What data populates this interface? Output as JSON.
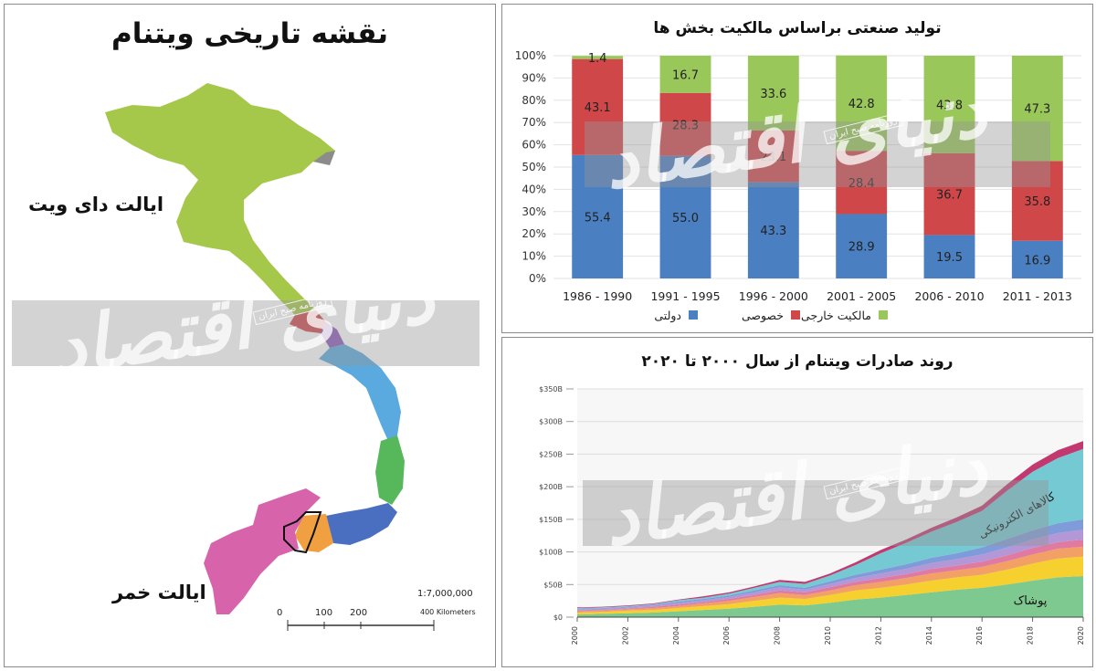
{
  "map_panel": {
    "title": "نقشه تاریخی ویتنام",
    "label_north": "ایالت دای ویت",
    "label_south": "ایالت خمر",
    "scale_ratio": "1:7,000,000",
    "scale_ticks": [
      "0",
      "100",
      "200",
      "400 Kilometers"
    ],
    "region_colors": {
      "north": "#a6c84a",
      "central": "#5aa9df",
      "south": "#d764ab"
    }
  },
  "watermark": {
    "main": "دنیای اقتصاد",
    "sub": "روزنامه صبح ایران"
  },
  "chart_data": [
    {
      "type": "bar",
      "stacked": true,
      "title": "تولید صنعتی براساس مالکیت بخش ها",
      "categories": [
        "1986 - 1990",
        "1991 - 1995",
        "1996 - 2000",
        "2001 - 2005",
        "2006 - 2010",
        "2011 - 2013"
      ],
      "series": [
        {
          "name": "دولتی",
          "color": "#4a7fc1",
          "values": [
            55.4,
            55.0,
            43.3,
            28.9,
            19.5,
            16.9
          ]
        },
        {
          "name": "خصوصی",
          "color": "#d0474a",
          "values": [
            43.1,
            28.3,
            23.1,
            28.4,
            36.7,
            35.8
          ]
        },
        {
          "name": "مالکیت خارجی",
          "color": "#9ac75a",
          "values": [
            1.4,
            16.7,
            33.6,
            42.8,
            43.8,
            47.3
          ]
        }
      ],
      "yticks": [
        "0%",
        "10%",
        "20%",
        "30%",
        "40%",
        "50%",
        "60%",
        "70%",
        "80%",
        "90%",
        "100%"
      ],
      "ylim": [
        0,
        100
      ],
      "legend": "bottom"
    },
    {
      "type": "area",
      "stacked": true,
      "title": "روند صادرات ویتنام از سال ۲۰۰۰ تا ۲۰۲۰",
      "x": [
        2000,
        2001,
        2002,
        2003,
        2004,
        2005,
        2006,
        2007,
        2008,
        2009,
        2010,
        2011,
        2012,
        2013,
        2014,
        2015,
        2016,
        2017,
        2018,
        2019,
        2020
      ],
      "xticks": [
        "2000",
        "2002",
        "2004",
        "2006",
        "2008",
        "2010",
        "2012",
        "2014",
        "2016",
        "2018",
        "2020"
      ],
      "yticks": [
        "$0",
        "$50B",
        "$100B",
        "$150B",
        "$200B",
        "$250B",
        "$300B",
        "$350B"
      ],
      "ylim": [
        0,
        350
      ],
      "series": [
        {
          "name": "پوشاک",
          "color": "#7ec98f",
          "values": [
            4,
            5,
            6,
            7,
            9,
            11,
            13,
            16,
            19,
            18,
            22,
            27,
            30,
            34,
            38,
            42,
            45,
            50,
            56,
            61,
            63
          ]
        },
        {
          "name": "",
          "color": "#f5d02e",
          "values": [
            3,
            3,
            4,
            4,
            5,
            6,
            7,
            9,
            11,
            10,
            12,
            14,
            15,
            16,
            18,
            19,
            20,
            23,
            26,
            29,
            30
          ]
        },
        {
          "name": "",
          "color": "#f2a065",
          "values": [
            2,
            2,
            2,
            3,
            3,
            4,
            5,
            6,
            7,
            6,
            7,
            8,
            9,
            10,
            11,
            11,
            12,
            13,
            14,
            15,
            15
          ]
        },
        {
          "name": "",
          "color": "#e07aa0",
          "values": [
            1,
            1,
            1,
            2,
            2,
            2,
            3,
            3,
            4,
            4,
            5,
            5,
            6,
            6,
            7,
            7,
            8,
            9,
            10,
            10,
            11
          ]
        },
        {
          "name": "",
          "color": "#b497d6",
          "values": [
            2,
            2,
            2,
            2,
            3,
            3,
            3,
            4,
            5,
            4,
            5,
            6,
            7,
            8,
            9,
            10,
            11,
            12,
            13,
            14,
            15
          ]
        },
        {
          "name": "",
          "color": "#7f9bd9",
          "values": [
            1,
            1,
            1,
            1,
            2,
            2,
            2,
            3,
            3,
            3,
            4,
            5,
            6,
            7,
            8,
            9,
            11,
            13,
            14,
            15,
            16
          ]
        },
        {
          "name": "کالاهای الکترونیکی",
          "color": "#74c9d3",
          "values": [
            1,
            1,
            1,
            1,
            2,
            2,
            3,
            4,
            5,
            6,
            9,
            15,
            25,
            33,
            40,
            48,
            56,
            74,
            90,
            100,
            108
          ]
        },
        {
          "name": "",
          "color": "#c2396f",
          "values": [
            1,
            1,
            1,
            1,
            1,
            2,
            2,
            2,
            3,
            3,
            3,
            4,
            5,
            5,
            6,
            7,
            8,
            10,
            11,
            12,
            12
          ]
        }
      ],
      "labels": [
        "کالاهای الکترونیکی",
        "پوشاک"
      ]
    }
  ]
}
